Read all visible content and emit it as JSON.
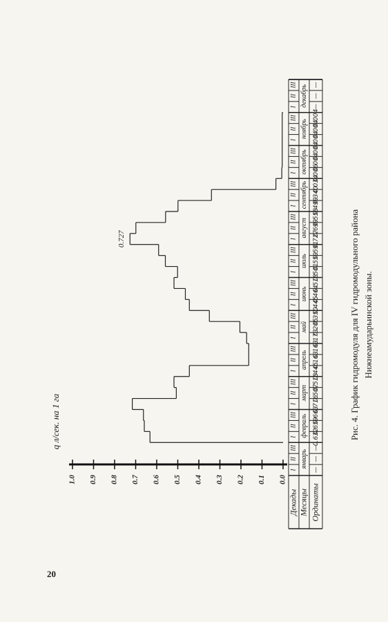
{
  "page_number": "20",
  "caption": [
    "Рис. 4. График гидромодуля для IV гидромодульного района",
    "Нижнеамударьинской зоны."
  ],
  "chart_data": {
    "type": "step",
    "y_label": "q л/сек. на 1 га",
    "row_headers": [
      "Декады",
      "Месяцы",
      "Ординаты"
    ],
    "months": [
      "январь",
      "февраль",
      "март",
      "апрель",
      "май",
      "июнь",
      "июль",
      "август",
      "сентябрь",
      "октябрь",
      "ноябрь",
      "декабрь"
    ],
    "categories": [
      "I",
      "II",
      "III",
      "I",
      "II",
      "III",
      "I",
      "II",
      "III",
      "I",
      "II",
      "III",
      "I",
      "II",
      "III",
      "I",
      "II",
      "III",
      "I",
      "II",
      "III",
      "I",
      "II",
      "III",
      "I",
      "II",
      "III",
      "I",
      "II",
      "III",
      "I",
      "II",
      "III",
      "I",
      "II",
      "III"
    ],
    "values": [
      null,
      null,
      null,
      0.632,
      0.659,
      0.663,
      0.716,
      0.507,
      0.518,
      0.445,
      0.163,
      0.163,
      0.173,
      0.205,
      0.35,
      0.445,
      0.464,
      0.518,
      0.501,
      0.559,
      0.591,
      0.727,
      0.699,
      0.558,
      0.499,
      0.34,
      0.034,
      0.006,
      0.004,
      0.004,
      0.004,
      0.004,
      0.004,
      null,
      null,
      null
    ],
    "value_labels": [
      "—",
      "—",
      "—",
      "0.632",
      "0.659",
      "0.663",
      "0.716",
      "0.507",
      "0.518",
      "0.445",
      "0.163",
      "0.163",
      "0.173",
      "0.205",
      "0.350",
      "0.445",
      "0.464",
      "0.518",
      "0.501",
      "0.559",
      "0.591",
      "0.727",
      "0.699",
      "0.558",
      "0.499",
      "0.340",
      "0.034",
      "0.006",
      "0.004",
      "0.004",
      "0.004",
      "0.004",
      "0.004",
      "—",
      "—",
      "—"
    ],
    "annotation": {
      "text": "0.727",
      "index": 21
    },
    "color": "#222222",
    "ylim": [
      0,
      1
    ],
    "yticks": [
      {
        "value": 0,
        "label": "0.0"
      },
      {
        "value": 0.1,
        "label": "0.1"
      },
      {
        "value": 0.2,
        "label": "0.2"
      },
      {
        "value": 0.3,
        "label": "0.3"
      },
      {
        "value": 0.4,
        "label": "0.4"
      },
      {
        "value": 0.5,
        "label": "0.5"
      },
      {
        "value": 0.6,
        "label": "0.6"
      },
      {
        "value": 0.7,
        "label": "0.7"
      },
      {
        "value": 0.8,
        "label": "0.8"
      },
      {
        "value": 0.9,
        "label": "0.9"
      },
      {
        "value": 1,
        "label": "1.0"
      }
    ]
  }
}
